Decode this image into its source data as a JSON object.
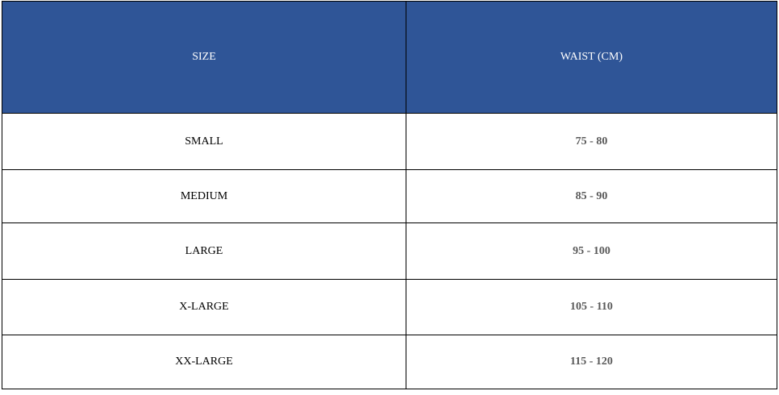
{
  "table": {
    "header": [
      "SIZE",
      "WAIST (CM)"
    ],
    "rows": [
      [
        "SMALL",
        "75 - 80"
      ],
      [
        "MEDIUM",
        "85 - 90"
      ],
      [
        "LARGE",
        "95 - 100"
      ],
      [
        "X-LARGE",
        "105 - 110"
      ],
      [
        "XX-LARGE",
        "115 - 120"
      ]
    ]
  }
}
